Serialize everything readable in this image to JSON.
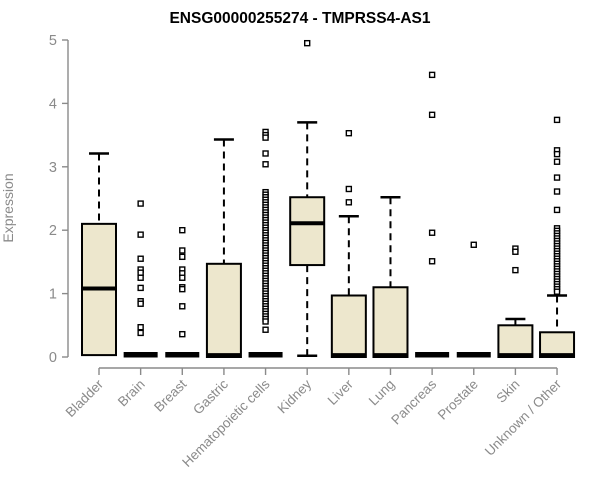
{
  "chart_data": {
    "type": "boxplot",
    "title": "ENSG00000255274 - TMPRSS4-AS1",
    "ylabel": "Expression",
    "xlabel": "",
    "ylim": [
      0,
      5
    ],
    "yticks": [
      "0",
      "1",
      "2",
      "3",
      "4",
      "5"
    ],
    "grid": false,
    "legend": "none",
    "categories": [
      "Bladder",
      "Brain",
      "Breast",
      "Gastric",
      "Hematopoietic cells",
      "Kidney",
      "Liver",
      "Lung",
      "Pancreas",
      "Prostate",
      "Skin",
      "Unknown / Other"
    ],
    "series": [
      {
        "name": "Bladder",
        "q1": 0.03,
        "median": 1.08,
        "q3": 2.1,
        "whisker_low": 0.03,
        "whisker_high": 3.21,
        "outliers": []
      },
      {
        "name": "Brain",
        "q1": 0.0,
        "median": 0.02,
        "q3": 0.03,
        "whisker_low": 0.0,
        "whisker_high": 0.03,
        "outliers": [
          2.42,
          1.93,
          1.55,
          1.38,
          1.33,
          1.25,
          1.09,
          0.88,
          0.84,
          0.47,
          0.38
        ]
      },
      {
        "name": "Breast",
        "q1": 0.0,
        "median": 0.02,
        "q3": 0.03,
        "whisker_low": 0.0,
        "whisker_high": 0.03,
        "outliers": [
          2.0,
          1.68,
          1.58,
          1.38,
          1.32,
          1.25,
          1.1,
          1.07,
          0.8,
          0.36
        ]
      },
      {
        "name": "Gastric",
        "q1": 0.0,
        "median": 0.03,
        "q3": 1.47,
        "whisker_low": 0.0,
        "whisker_high": 3.43,
        "outliers": []
      },
      {
        "name": "Hematopoietic cells",
        "q1": 0.0,
        "median": 0.02,
        "q3": 0.03,
        "whisker_low": 0.0,
        "whisker_high": 0.03,
        "outliers": [
          3.55,
          3.5,
          3.46,
          3.21,
          3.04,
          2.6,
          2.56,
          2.52,
          2.48,
          2.44,
          2.4,
          2.36,
          2.32,
          2.28,
          2.24,
          2.2,
          2.16,
          2.12,
          2.08,
          2.04,
          2.0,
          1.96,
          1.92,
          1.88,
          1.84,
          1.8,
          1.76,
          1.72,
          1.68,
          1.64,
          1.6,
          1.56,
          1.52,
          1.48,
          1.44,
          1.4,
          1.36,
          1.32,
          1.28,
          1.24,
          1.2,
          1.16,
          1.12,
          1.08,
          1.04,
          1.0,
          0.96,
          0.92,
          0.88,
          0.84,
          0.8,
          0.76,
          0.72,
          0.68,
          0.64,
          0.6,
          0.56,
          0.43
        ]
      },
      {
        "name": "Kidney",
        "q1": 1.45,
        "median": 2.11,
        "q3": 2.52,
        "whisker_low": 0.02,
        "whisker_high": 3.7,
        "outliers": [
          4.95
        ]
      },
      {
        "name": "Liver",
        "q1": 0.0,
        "median": 0.03,
        "q3": 0.97,
        "whisker_low": 0.0,
        "whisker_high": 2.22,
        "outliers": [
          3.53,
          2.65,
          2.44
        ]
      },
      {
        "name": "Lung",
        "q1": 0.0,
        "median": 0.03,
        "q3": 1.1,
        "whisker_low": 0.0,
        "whisker_high": 2.52,
        "outliers": []
      },
      {
        "name": "Pancreas",
        "q1": 0.0,
        "median": 0.02,
        "q3": 0.03,
        "whisker_low": 0.0,
        "whisker_high": 0.03,
        "outliers": [
          4.45,
          3.82,
          1.96,
          1.51
        ]
      },
      {
        "name": "Prostate",
        "q1": 0.0,
        "median": 0.02,
        "q3": 0.03,
        "whisker_low": 0.0,
        "whisker_high": 0.03,
        "outliers": [
          1.77
        ]
      },
      {
        "name": "Skin",
        "q1": 0.0,
        "median": 0.03,
        "q3": 0.5,
        "whisker_low": 0.0,
        "whisker_high": 0.6,
        "outliers": [
          1.71,
          1.66,
          1.37
        ]
      },
      {
        "name": "Unknown / Other",
        "q1": 0.0,
        "median": 0.03,
        "q3": 0.39,
        "whisker_low": 0.0,
        "whisker_high": 0.97,
        "outliers": [
          3.74,
          3.26,
          3.2,
          3.08,
          2.83,
          2.61,
          2.32,
          2.03,
          1.99,
          1.95,
          1.91,
          1.87,
          1.83,
          1.79,
          1.75,
          1.71,
          1.67,
          1.63,
          1.59,
          1.55,
          1.51,
          1.47,
          1.43,
          1.39,
          1.35,
          1.31,
          1.27,
          1.23,
          1.19,
          1.15,
          1.11,
          1.07,
          1.03
        ]
      }
    ]
  },
  "colors": {
    "box_fill": "#EDE7CD",
    "box_stroke": "#000000",
    "median": "#000000",
    "whisker": "#000000",
    "outlier_stroke": "#000000",
    "outlier_fill": "#ffffff",
    "axis_line": "#8a8a8a",
    "tick_text": "#8a8a8a",
    "title_text": "#000000",
    "background": "#ffffff"
  }
}
